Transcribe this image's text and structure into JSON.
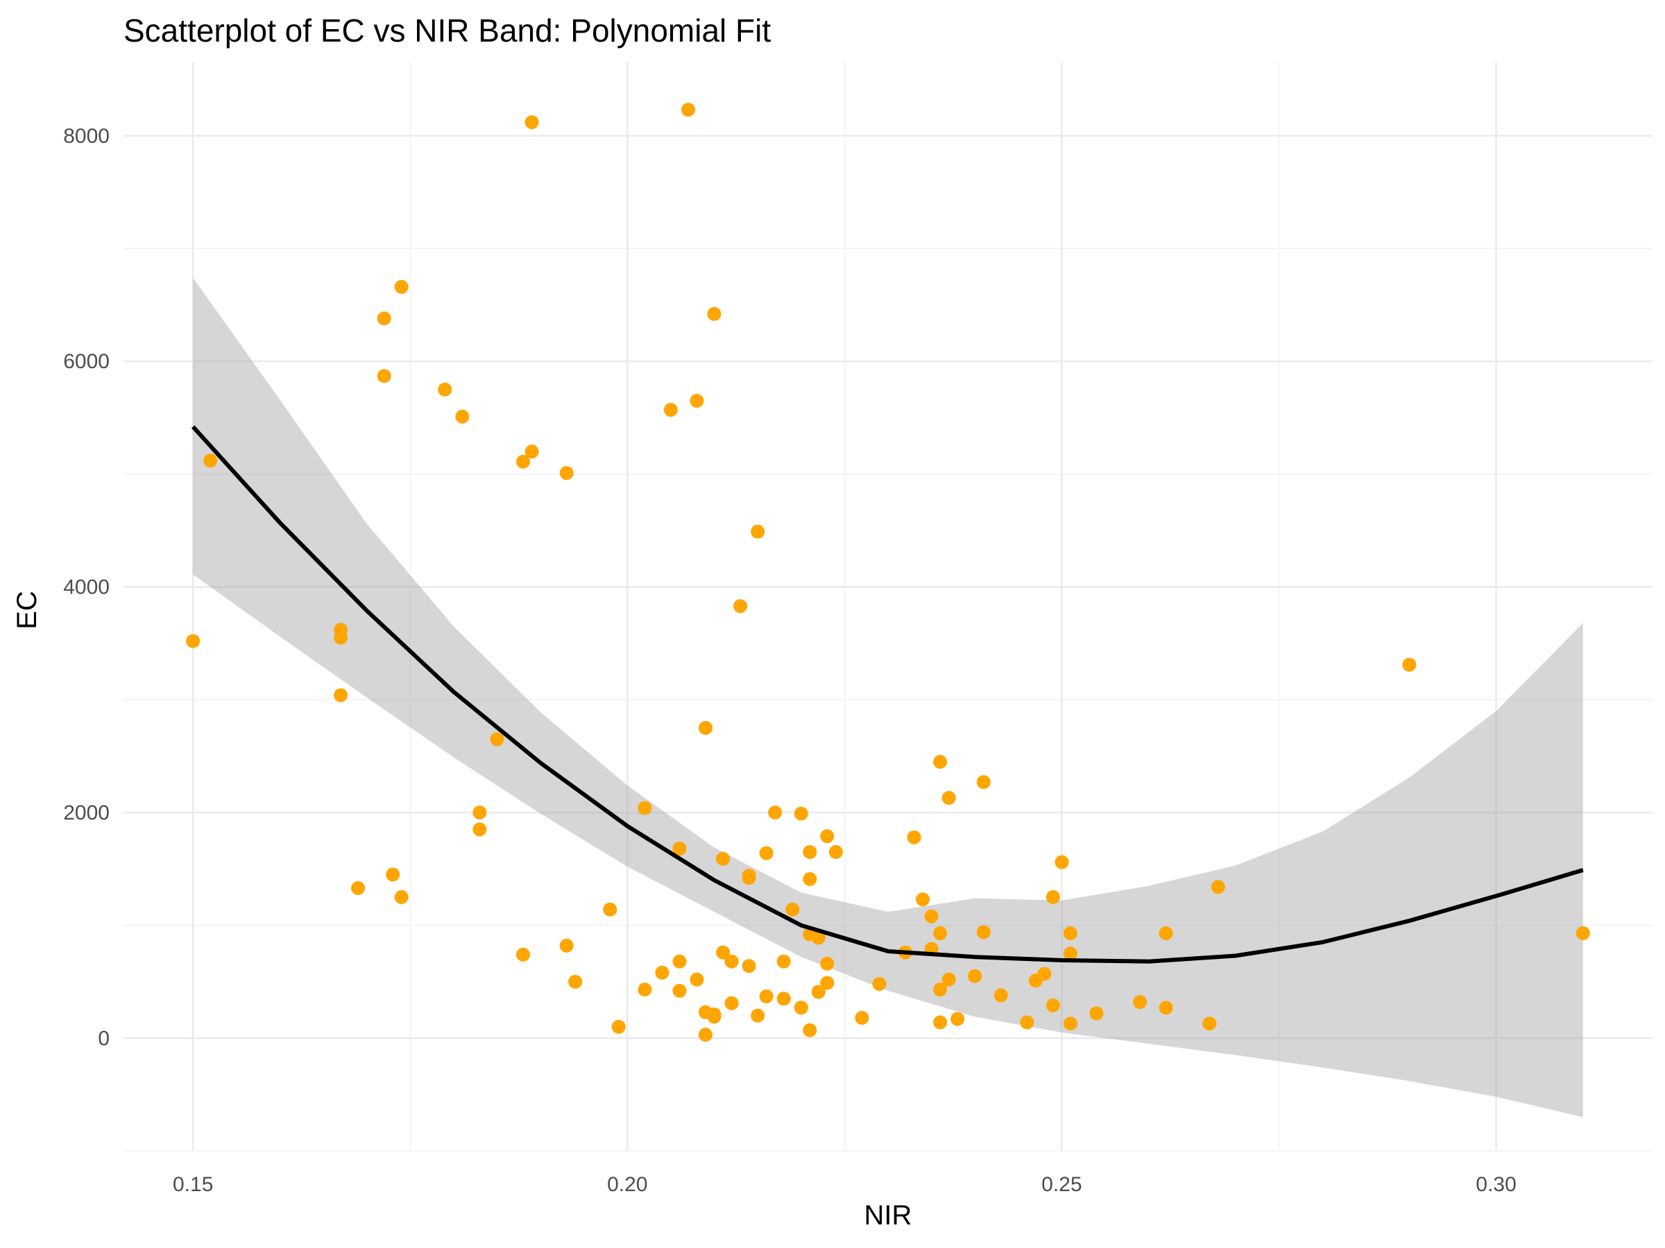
{
  "chart_data": {
    "type": "scatter",
    "title": "Scatterplot of EC vs NIR Band: Polynomial Fit",
    "xlabel": "NIR",
    "ylabel": "EC",
    "xlim": [
      0.142,
      0.318
    ],
    "ylim": [
      -1000,
      8650
    ],
    "x_ticks": [
      0.15,
      0.2,
      0.25,
      0.3
    ],
    "x_tick_labels": [
      "0.15",
      "0.20",
      "0.25",
      "0.30"
    ],
    "x_minor_ticks": [
      0.175,
      0.225,
      0.275
    ],
    "y_ticks": [
      0,
      2000,
      4000,
      6000,
      8000
    ],
    "y_tick_labels": [
      "0",
      "2000",
      "4000",
      "6000",
      "8000"
    ],
    "y_minor_ticks": [
      -1000,
      1000,
      3000,
      5000,
      7000
    ],
    "grid": true,
    "legend": "none",
    "point_color": "#FFA500",
    "fit_color": "#000000",
    "band_color": "#999999",
    "series": [
      {
        "points": [
          [
            0.15,
            3520
          ],
          [
            0.152,
            5120
          ],
          [
            0.167,
            3620
          ],
          [
            0.167,
            3550
          ],
          [
            0.167,
            3040
          ],
          [
            0.169,
            1330
          ],
          [
            0.172,
            6380
          ],
          [
            0.172,
            5870
          ],
          [
            0.173,
            1450
          ],
          [
            0.174,
            6660
          ],
          [
            0.174,
            1250
          ],
          [
            0.179,
            5750
          ],
          [
            0.181,
            5510
          ],
          [
            0.183,
            2000
          ],
          [
            0.183,
            1850
          ],
          [
            0.185,
            2650
          ],
          [
            0.188,
            5110
          ],
          [
            0.189,
            5200
          ],
          [
            0.189,
            8120
          ],
          [
            0.188,
            740
          ],
          [
            0.193,
            5010
          ],
          [
            0.193,
            820
          ],
          [
            0.194,
            500
          ],
          [
            0.198,
            1140
          ],
          [
            0.199,
            100
          ],
          [
            0.202,
            2040
          ],
          [
            0.202,
            430
          ],
          [
            0.204,
            580
          ],
          [
            0.205,
            5570
          ],
          [
            0.206,
            1680
          ],
          [
            0.206,
            680
          ],
          [
            0.206,
            420
          ],
          [
            0.207,
            8230
          ],
          [
            0.208,
            5650
          ],
          [
            0.208,
            520
          ],
          [
            0.209,
            2750
          ],
          [
            0.209,
            230
          ],
          [
            0.209,
            30
          ],
          [
            0.21,
            190
          ],
          [
            0.21,
            210
          ],
          [
            0.21,
            6420
          ],
          [
            0.211,
            1590
          ],
          [
            0.211,
            760
          ],
          [
            0.212,
            680
          ],
          [
            0.212,
            310
          ],
          [
            0.213,
            3830
          ],
          [
            0.214,
            1440
          ],
          [
            0.214,
            1420
          ],
          [
            0.214,
            640
          ],
          [
            0.215,
            4490
          ],
          [
            0.215,
            200
          ],
          [
            0.216,
            370
          ],
          [
            0.216,
            1640
          ],
          [
            0.217,
            2000
          ],
          [
            0.218,
            680
          ],
          [
            0.218,
            350
          ],
          [
            0.219,
            1140
          ],
          [
            0.22,
            1990
          ],
          [
            0.22,
            270
          ],
          [
            0.221,
            1650
          ],
          [
            0.221,
            1410
          ],
          [
            0.221,
            920
          ],
          [
            0.222,
            890
          ],
          [
            0.222,
            410
          ],
          [
            0.221,
            70
          ],
          [
            0.223,
            1790
          ],
          [
            0.223,
            660
          ],
          [
            0.223,
            490
          ],
          [
            0.224,
            1650
          ],
          [
            0.227,
            180
          ],
          [
            0.229,
            480
          ],
          [
            0.233,
            1780
          ],
          [
            0.232,
            760
          ],
          [
            0.234,
            1230
          ],
          [
            0.235,
            1080
          ],
          [
            0.235,
            790
          ],
          [
            0.236,
            430
          ],
          [
            0.236,
            140
          ],
          [
            0.236,
            2450
          ],
          [
            0.236,
            930
          ],
          [
            0.237,
            2130
          ],
          [
            0.237,
            520
          ],
          [
            0.238,
            170
          ],
          [
            0.24,
            550
          ],
          [
            0.241,
            2270
          ],
          [
            0.241,
            940
          ],
          [
            0.243,
            380
          ],
          [
            0.246,
            140
          ],
          [
            0.247,
            510
          ],
          [
            0.248,
            570
          ],
          [
            0.249,
            290
          ],
          [
            0.249,
            1250
          ],
          [
            0.25,
            1560
          ],
          [
            0.251,
            930
          ],
          [
            0.251,
            750
          ],
          [
            0.251,
            130
          ],
          [
            0.254,
            220
          ],
          [
            0.259,
            320
          ],
          [
            0.262,
            270
          ],
          [
            0.262,
            930
          ],
          [
            0.267,
            130
          ],
          [
            0.268,
            1340
          ],
          [
            0.29,
            3310
          ],
          [
            0.31,
            930
          ]
        ]
      }
    ],
    "fit": {
      "x": [
        0.15,
        0.16,
        0.17,
        0.18,
        0.19,
        0.2,
        0.21,
        0.22,
        0.23,
        0.24,
        0.25,
        0.26,
        0.27,
        0.28,
        0.29,
        0.3,
        0.31
      ],
      "y": [
        5420,
        4570,
        3790,
        3070,
        2440,
        1880,
        1400,
        1000,
        770,
        720,
        690,
        680,
        730,
        850,
        1040,
        1260,
        1490
      ],
      "lower": [
        4110,
        3560,
        3020,
        2490,
        1990,
        1520,
        1120,
        720,
        420,
        190,
        50,
        -50,
        -150,
        -260,
        -380,
        -520,
        -700
      ],
      "upper": [
        6740,
        5660,
        4560,
        3650,
        2890,
        2240,
        1690,
        1290,
        1120,
        1240,
        1220,
        1350,
        1530,
        1830,
        2310,
        2900,
        3680
      ]
    }
  }
}
